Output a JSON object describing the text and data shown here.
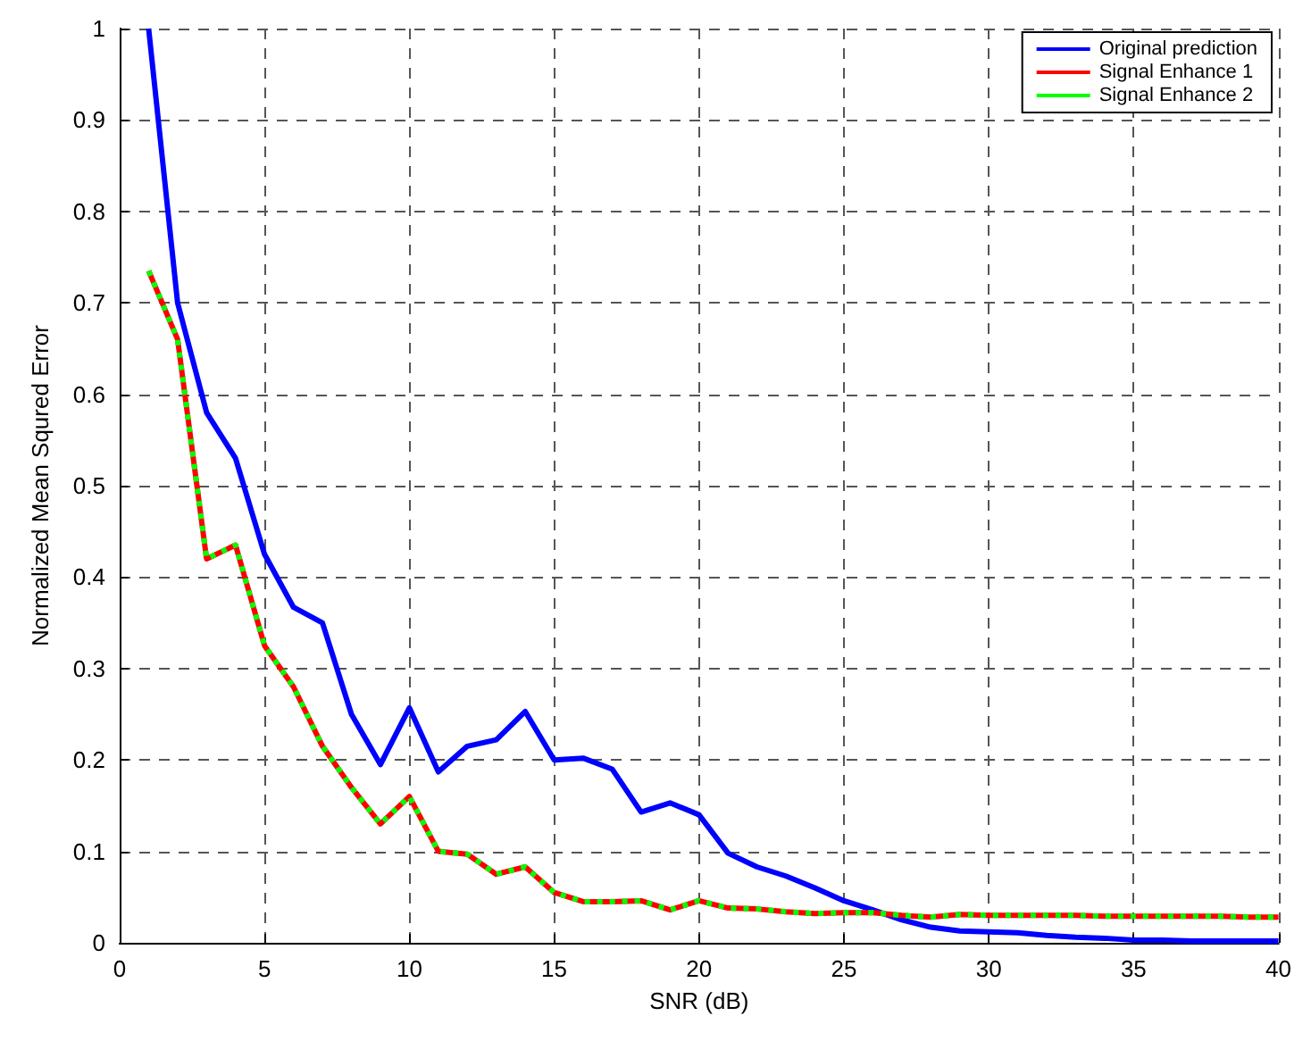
{
  "chart_data": {
    "type": "line",
    "xlabel": "SNR (dB)",
    "ylabel": "Normalized Mean Squred Error",
    "xlim": [
      0,
      40
    ],
    "ylim": [
      0,
      1
    ],
    "xticks": [
      0,
      5,
      10,
      15,
      20,
      25,
      30,
      35,
      40
    ],
    "yticks": [
      0,
      0.1,
      0.2,
      0.3,
      0.4,
      0.5,
      0.6,
      0.7,
      0.8,
      0.9,
      1
    ],
    "grid": true,
    "legend": "top right",
    "x": [
      1,
      2,
      3,
      4,
      5,
      6,
      7,
      8,
      9,
      10,
      11,
      12,
      13,
      14,
      15,
      16,
      17,
      18,
      19,
      20,
      21,
      22,
      23,
      24,
      25,
      26,
      27,
      28,
      29,
      30,
      31,
      32,
      33,
      34,
      35,
      36,
      37,
      38,
      39,
      40
    ],
    "series": [
      {
        "name": "Original prediction",
        "color": "#0000ff",
        "line_style": "solid",
        "values": [
          1.0,
          0.7,
          0.58,
          0.53,
          0.425,
          0.367,
          0.35,
          0.25,
          0.195,
          0.257,
          0.187,
          0.215,
          0.222,
          0.253,
          0.2,
          0.202,
          0.19,
          0.143,
          0.153,
          0.14,
          0.098,
          0.083,
          0.073,
          0.06,
          0.046,
          0.036,
          0.025,
          0.017,
          0.013,
          0.012,
          0.011,
          0.008,
          0.006,
          0.005,
          0.003,
          0.003,
          0.002,
          0.002,
          0.002,
          0.002
        ]
      },
      {
        "name": "Signal Enhance 1",
        "color": "#ff0000",
        "line_style": "solid",
        "values": [
          0.735,
          0.66,
          0.42,
          0.435,
          0.325,
          0.28,
          0.215,
          0.17,
          0.13,
          0.16,
          0.1,
          0.097,
          0.075,
          0.083,
          0.055,
          0.045,
          0.045,
          0.046,
          0.036,
          0.046,
          0.038,
          0.037,
          0.034,
          0.032,
          0.033,
          0.033,
          0.03,
          0.028,
          0.031,
          0.03,
          0.03,
          0.03,
          0.03,
          0.029,
          0.029,
          0.029,
          0.029,
          0.029,
          0.028,
          0.028
        ]
      },
      {
        "name": "Signal Enhance 2",
        "color": "#00ff00",
        "line_style": "dotted",
        "values": [
          0.735,
          0.66,
          0.42,
          0.435,
          0.325,
          0.28,
          0.215,
          0.17,
          0.13,
          0.16,
          0.1,
          0.097,
          0.075,
          0.083,
          0.055,
          0.045,
          0.045,
          0.046,
          0.036,
          0.046,
          0.038,
          0.037,
          0.034,
          0.032,
          0.033,
          0.033,
          0.03,
          0.028,
          0.031,
          0.03,
          0.03,
          0.03,
          0.03,
          0.029,
          0.029,
          0.029,
          0.029,
          0.029,
          0.028,
          0.028
        ]
      }
    ]
  }
}
